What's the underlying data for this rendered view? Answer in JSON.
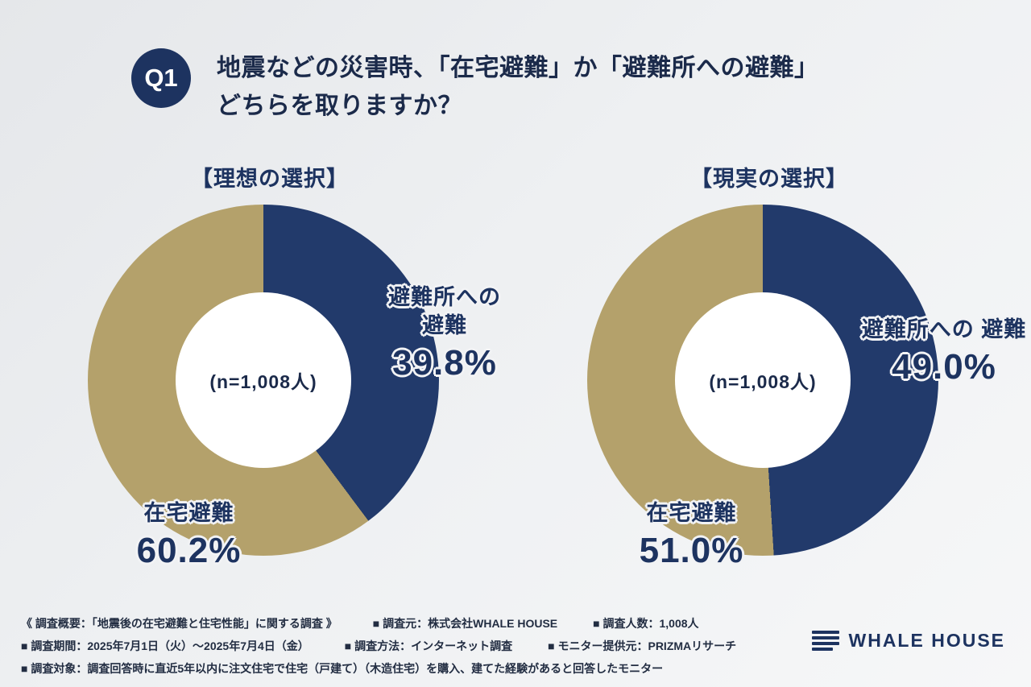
{
  "header": {
    "badge": "Q1",
    "title_line1": "地震などの災害時、「在宅避難」か「避難所への避難」",
    "title_line2": "どちらを取りますか？"
  },
  "chart_data": [
    {
      "type": "pie",
      "title": "【理想の選択】",
      "center_label": "(n=1,008人)",
      "categories": [
        "避難所への避難",
        "在宅避難"
      ],
      "values": [
        39.8,
        60.2
      ],
      "colors": [
        "#223a6b",
        "#b4a16b"
      ],
      "labels": {
        "shelter_line1": "避難所への",
        "shelter_line2": "避難",
        "shelter_value": "39.8%",
        "home_name": "在宅避難",
        "home_value": "60.2%"
      }
    },
    {
      "type": "pie",
      "title": "【現実の選択】",
      "center_label": "(n=1,008人)",
      "categories": [
        "避難所への避難",
        "在宅避難"
      ],
      "values": [
        49.0,
        51.0
      ],
      "colors": [
        "#223a6b",
        "#b4a16b"
      ],
      "labels": {
        "shelter_name": "避難所への 避難",
        "shelter_value": "49.0%",
        "home_name": "在宅避難",
        "home_value": "51.0%"
      }
    }
  ],
  "footer": {
    "line1": [
      "《 調査概要：「地震後の在宅避難と住宅性能」に関する調査 》",
      "■ 調査元：株式会社WHALE HOUSE",
      "■ 調査人数：1,008人"
    ],
    "line2": [
      "■ 調査期間：2025年7月1日（火）〜2025年7月4日（金）",
      "■ 調査方法：インターネット調査",
      "■ モニター提供元：PRIZMAリサーチ"
    ],
    "line3": [
      "■ 調査対象：調査回答時に直近5年以内に注文住宅で住宅（戸建て）（木造住宅）を購入、建てた経験があると回答したモニター"
    ]
  },
  "brand": {
    "name": "WHALE HOUSE"
  }
}
